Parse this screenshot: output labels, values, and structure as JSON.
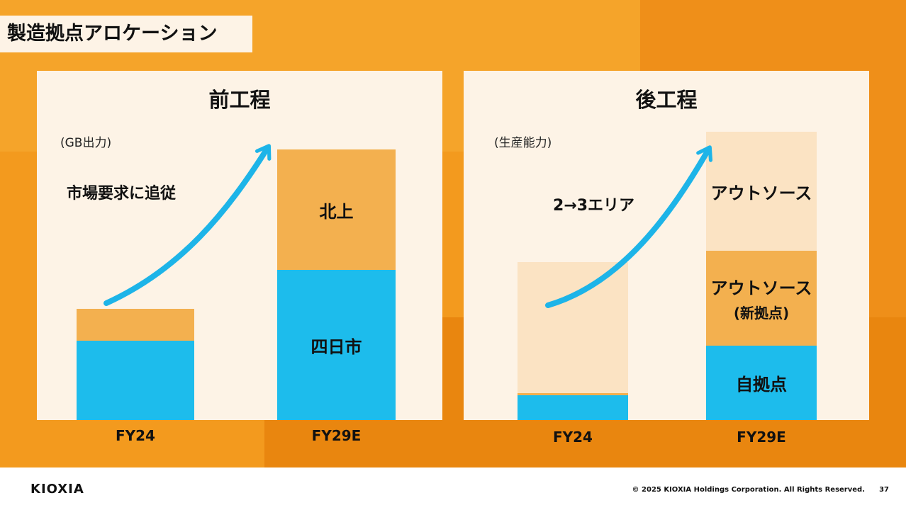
{
  "slide": {
    "title": "製造拠点アロケーション",
    "page_number": "37"
  },
  "footer": {
    "logo": "KIOXIA",
    "copyright": "© 2025 KIOXIA Holdings Corporation. All Rights Reserved."
  },
  "colors": {
    "cyan": "#1dbcec",
    "orange_light": "#f3b04f",
    "cream": "#fbe3c3",
    "arrow": "#1db4e8",
    "panel": "#fdf3e6"
  },
  "chart_data": [
    {
      "type": "bar",
      "stacked": true,
      "title": "前工程",
      "unit_label": "(GB出力)",
      "annotation": "市場要求に追従",
      "categories": [
        "FY24",
        "FY29E"
      ],
      "series": [
        {
          "name": "四日市",
          "values": [
            112,
            212
          ],
          "color": "#1dbcec"
        },
        {
          "name": "北上",
          "values": [
            45,
            170
          ],
          "color": "#f3b04f"
        }
      ],
      "segment_labels": [
        [
          "",
          ""
        ],
        [
          "四日市",
          "北上"
        ]
      ],
      "ylim": [
        0,
        385
      ],
      "grid": false
    },
    {
      "type": "bar",
      "stacked": true,
      "title": "後工程",
      "unit_label": "(生産能力)",
      "annotation": "2→3エリア",
      "categories": [
        "FY24",
        "FY29E"
      ],
      "series": [
        {
          "name": "自拠点",
          "values": [
            35,
            105
          ],
          "color": "#1dbcec"
        },
        {
          "name": "アウトソース(新拠点)",
          "values": [
            3,
            134
          ],
          "color": "#f3b04f"
        },
        {
          "name": "アウトソース",
          "values": [
            185,
            168
          ],
          "color": "#fbe3c3"
        }
      ],
      "segment_labels": [
        [
          "",
          "",
          ""
        ],
        [
          "自拠点",
          "アウトソース|(新拠点)",
          "アウトソース"
        ]
      ],
      "ylim": [
        0,
        410
      ],
      "grid": false
    }
  ]
}
